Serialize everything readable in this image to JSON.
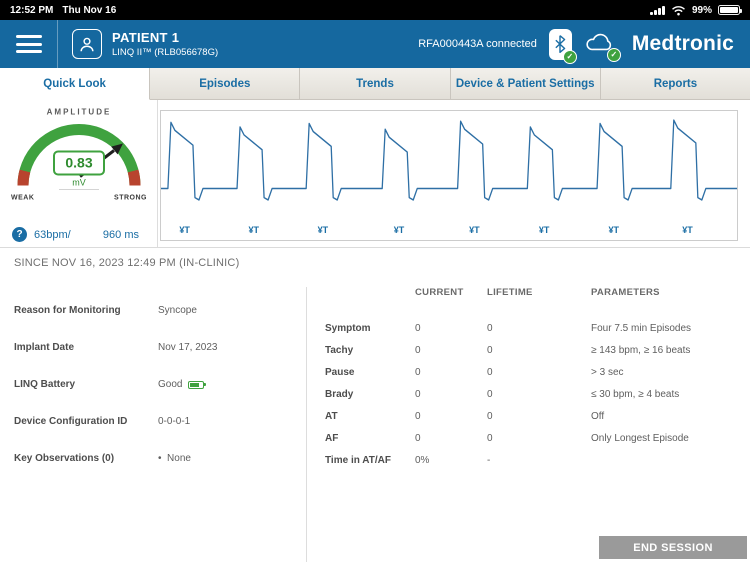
{
  "status_bar": {
    "time": "12:52 PM",
    "date": "Thu Nov 16",
    "battery_percent": "99%"
  },
  "header": {
    "patient_name": "PATIENT 1",
    "device_line": "LINQ II™  (RLB056678G)",
    "connection_status": "RFA000443A connected",
    "brand": "Medtronic"
  },
  "tabs": [
    {
      "label": "Quick Look",
      "active": true
    },
    {
      "label": "Episodes",
      "active": false
    },
    {
      "label": "Trends",
      "active": false
    },
    {
      "label": "Device & Patient Settings",
      "active": false
    },
    {
      "label": "Reports",
      "active": false
    }
  ],
  "quick_look": {
    "gauge": {
      "title": "AMPLITUDE",
      "value": "0.83",
      "unit": "mV",
      "left_label": "WEAK",
      "right_label": "STRONG"
    },
    "rate_row": {
      "help_icon": "?",
      "rate": "63bpm/",
      "interval": "960 ms"
    },
    "ecg": {
      "marker_label": "¥T",
      "beats": [
        0.012,
        0.132,
        0.252,
        0.384,
        0.515,
        0.636,
        0.757,
        0.885
      ],
      "peaks": [
        10,
        14,
        11,
        16,
        9,
        14,
        11,
        8
      ]
    },
    "since_line": "SINCE NOV 16, 2023 12:49 PM (IN-CLINIC)",
    "details": [
      {
        "label": "Reason for Monitoring",
        "value": "Syncope"
      },
      {
        "label": "Implant Date",
        "value": "Nov 17, 2023"
      },
      {
        "label": "LINQ Battery",
        "value": "Good",
        "icon": "battery-good-icon"
      },
      {
        "label": "Device Configuration ID",
        "value": "0-0-0-1"
      },
      {
        "label": "Key Observations (0)",
        "value": "None",
        "bullet": true
      }
    ],
    "episode_table": {
      "columns": [
        "CURRENT",
        "LIFETIME",
        "PARAMETERS"
      ],
      "rows": [
        {
          "name": "Symptom",
          "current": "0",
          "lifetime": "0",
          "parameters": "Four 7.5 min Episodes"
        },
        {
          "name": "Tachy",
          "current": "0",
          "lifetime": "0",
          "parameters": "≥ 143 bpm, ≥ 16 beats"
        },
        {
          "name": "Pause",
          "current": "0",
          "lifetime": "0",
          "parameters": "> 3 sec"
        },
        {
          "name": "Brady",
          "current": "0",
          "lifetime": "0",
          "parameters": "≤ 30 bpm, ≥ 4 beats"
        },
        {
          "name": "AT",
          "current": "0",
          "lifetime": "0",
          "parameters": "Off"
        },
        {
          "name": "AF",
          "current": "0",
          "lifetime": "0",
          "parameters": "Only Longest Episode"
        },
        {
          "name": "Time in AT/AF",
          "current": "0%",
          "lifetime": "-",
          "parameters": ""
        }
      ]
    }
  },
  "footer": {
    "end_session": "END SESSION"
  },
  "icons": {
    "check": "✓",
    "help": "?",
    "bullet": "•"
  },
  "colors": {
    "header_blue": "#15689F",
    "accent_blue": "#1A6DA4",
    "success_green": "#3FA23F",
    "ecg_blue": "#2E6FA5",
    "gauge_tip_red": "#B8432E",
    "end_session_gray": "#9A9A9A",
    "tab_bar_beige": "#ECE9E3"
  }
}
